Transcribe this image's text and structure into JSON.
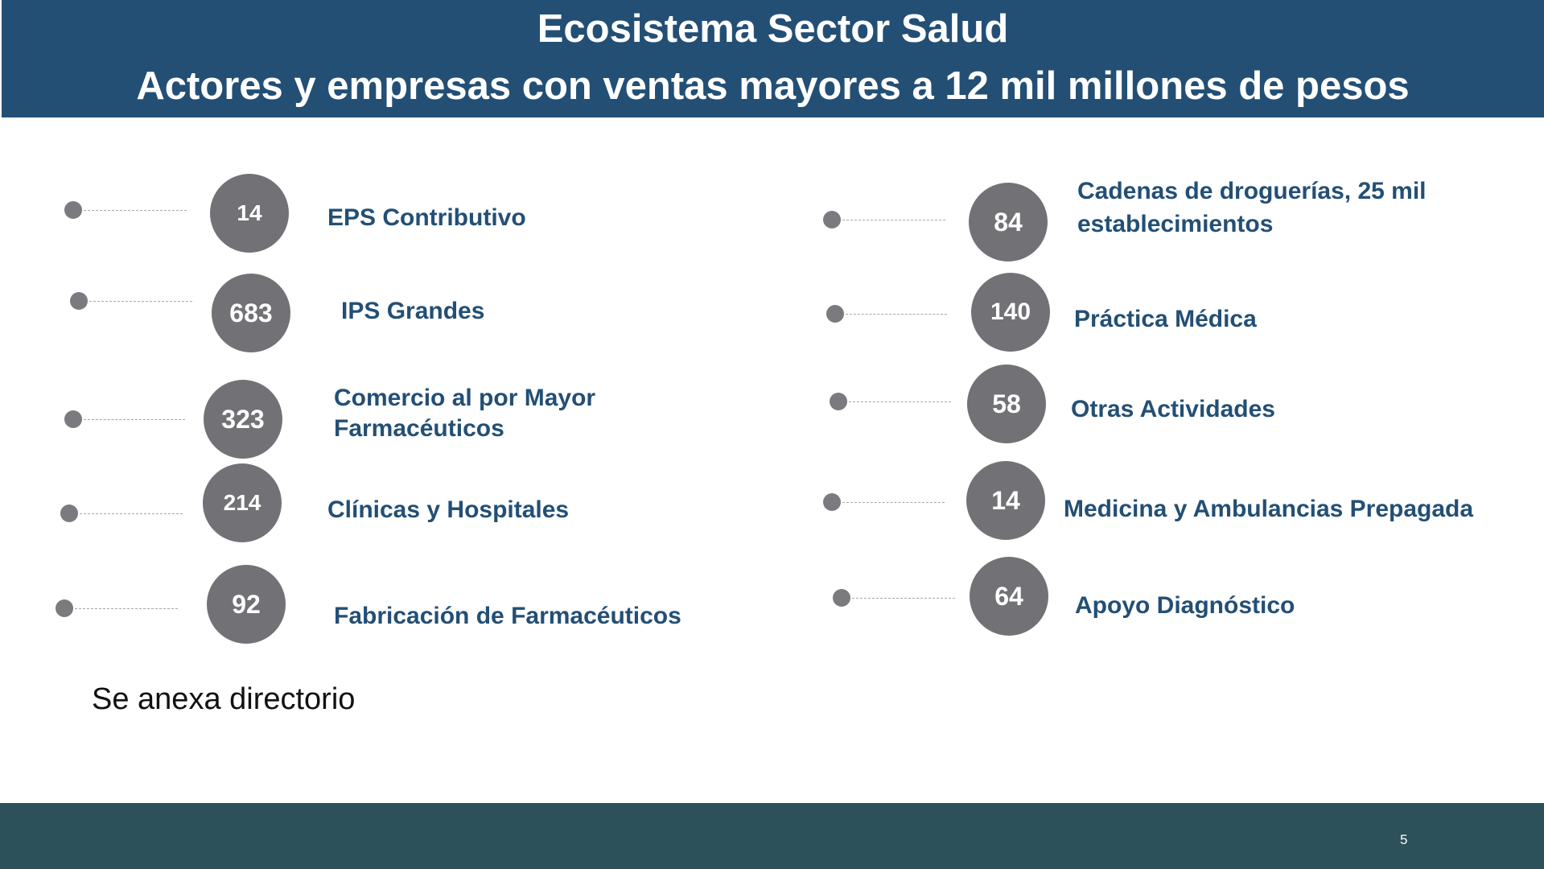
{
  "header": {
    "title": "Ecosistema Sector Salud",
    "subtitle": "Actores y empresas con ventas mayores a 12 mil millones de pesos"
  },
  "left_items": [
    {
      "count": "14",
      "label": "EPS Contributivo"
    },
    {
      "count": "683",
      "label": "IPS Grandes"
    },
    {
      "count": "323",
      "label": "Comercio al por Mayor\nFarmacéuticos"
    },
    {
      "count": "214",
      "label": "Clínicas y Hospitales"
    },
    {
      "count": "92",
      "label": "Fabricación de Farmacéuticos"
    }
  ],
  "right_items": [
    {
      "count": "84",
      "label": "Cadenas de droguerías, 25 mil\nestablecimientos"
    },
    {
      "count": "140",
      "label": "Práctica Médica"
    },
    {
      "count": "58",
      "label": "Otras Actividades"
    },
    {
      "count": "14",
      "label": "Medicina y Ambulancias Prepagada"
    },
    {
      "count": "64",
      "label": "Apoyo Diagnóstico"
    }
  ],
  "note": "Se anexa directorio",
  "footer": {
    "page_number": "5"
  },
  "colors": {
    "header_bg": "#234f75",
    "label_text": "#234f75",
    "circle_fill": "#727276",
    "footer_bg": "#2c515a"
  }
}
